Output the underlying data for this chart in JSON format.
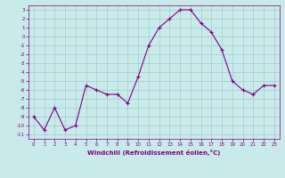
{
  "x": [
    0,
    1,
    2,
    3,
    4,
    5,
    6,
    7,
    8,
    9,
    10,
    11,
    12,
    13,
    14,
    15,
    16,
    17,
    18,
    19,
    20,
    21,
    22,
    23
  ],
  "y": [
    -9,
    -10.5,
    -8,
    -10.5,
    -10,
    -5.5,
    -6,
    -6.5,
    -6.5,
    -7.5,
    -4.5,
    -1,
    1,
    2,
    3,
    3,
    1.5,
    0.5,
    -1.5,
    -5,
    -6,
    -6.5,
    -5.5,
    -5.5
  ],
  "line_color": "#800080",
  "marker_color": "#800080",
  "bg_color": "#c8eaea",
  "grid_color": "#a0cccc",
  "xlabel": "Windchill (Refroidissement éolien,°C)",
  "xlabel_color": "#800080",
  "tick_color": "#800080",
  "ylim": [
    -11.5,
    3.5
  ],
  "yticks": [
    3,
    2,
    1,
    0,
    -1,
    -2,
    -3,
    -4,
    -5,
    -6,
    -7,
    -8,
    -9,
    -10,
    -11
  ],
  "xlim": [
    -0.5,
    23.5
  ],
  "xticks": [
    0,
    1,
    2,
    3,
    4,
    5,
    6,
    7,
    8,
    9,
    10,
    11,
    12,
    13,
    14,
    15,
    16,
    17,
    18,
    19,
    20,
    21,
    22,
    23
  ]
}
